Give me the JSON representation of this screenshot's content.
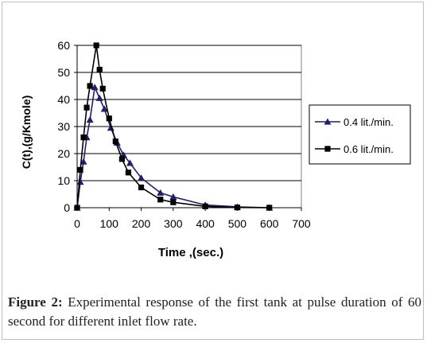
{
  "chart_data": {
    "type": "line",
    "xlabel": "Time ,(sec.)",
    "ylabel": "C(t),(g/Kmole)",
    "xlim": [
      0,
      700
    ],
    "ylim": [
      0,
      60
    ],
    "xticks": [
      0,
      100,
      200,
      300,
      400,
      500,
      600,
      700
    ],
    "yticks": [
      0,
      10,
      20,
      30,
      40,
      50,
      60
    ],
    "grid": "horizontal",
    "legend": "right",
    "series": [
      {
        "name": "0.4 lit./min.",
        "marker": "triangle",
        "color": "#1f1f6b",
        "x": [
          0,
          10,
          20,
          30,
          40,
          55,
          70,
          85,
          105,
          125,
          145,
          165,
          200,
          260,
          300,
          400,
          500,
          600
        ],
        "y": [
          0,
          9.5,
          17,
          26,
          32.5,
          44.5,
          40.5,
          36.5,
          29.5,
          24,
          19.5,
          16.5,
          11,
          5.5,
          4,
          1,
          0.3,
          0
        ]
      },
      {
        "name": "0.6 lit./min.",
        "marker": "square",
        "color": "#000000",
        "x": [
          0,
          10,
          20,
          30,
          40,
          60,
          70,
          80,
          100,
          120,
          140,
          160,
          200,
          260,
          300,
          400,
          500,
          600
        ],
        "y": [
          0,
          14,
          26,
          37,
          45,
          60,
          51,
          44,
          33,
          24.5,
          18,
          13,
          7.5,
          3,
          2,
          0.5,
          0.1,
          0
        ]
      }
    ]
  },
  "caption": {
    "label": "Figure 2:",
    "text": " Experimental response of the first tank at pulse duration of 60 second for different inlet flow rate."
  }
}
